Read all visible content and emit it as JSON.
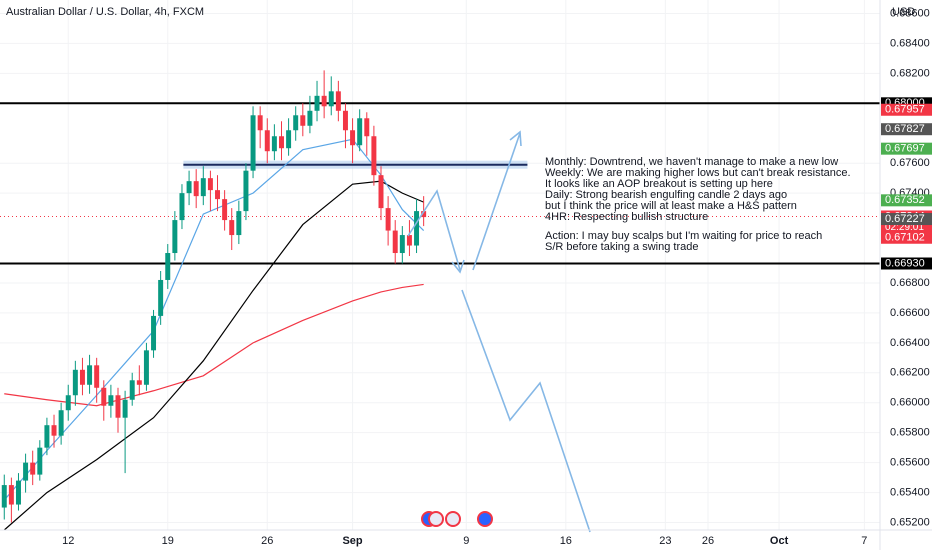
{
  "chart_data": {
    "type": "candlestick",
    "title": "Australian Dollar / U.S. Dollar, 4h, FXCM",
    "currency": "USD",
    "x": [
      7.5,
      8,
      8.5,
      9,
      9.5,
      10,
      10.5,
      11,
      11.5,
      12,
      12.5,
      13,
      13.5,
      14,
      14.5,
      15,
      15.5,
      16,
      16.5,
      17,
      17.5,
      18,
      18.5,
      19,
      19.5,
      20,
      20.5,
      21,
      21.5,
      22,
      22.5,
      23,
      23.5,
      24,
      24.5,
      25,
      25.5,
      26,
      26.5,
      27,
      27.5,
      28,
      28.5,
      29,
      29.5,
      30,
      30.5,
      31,
      31.5,
      32,
      32.5,
      33,
      33.5,
      34,
      34.5,
      35,
      35.5,
      36,
      36.5,
      37
    ],
    "open": [
      0.653,
      0.6545,
      0.6532,
      0.6548,
      0.656,
      0.6552,
      0.657,
      0.6585,
      0.6578,
      0.6595,
      0.6605,
      0.6622,
      0.6612,
      0.6625,
      0.661,
      0.6598,
      0.6605,
      0.659,
      0.6602,
      0.6615,
      0.6612,
      0.6635,
      0.6658,
      0.6682,
      0.67,
      0.6722,
      0.674,
      0.6748,
      0.6738,
      0.675,
      0.6742,
      0.6736,
      0.6722,
      0.6712,
      0.6728,
      0.6755,
      0.6792,
      0.6782,
      0.6768,
      0.6778,
      0.677,
      0.6782,
      0.6792,
      0.6785,
      0.6795,
      0.6805,
      0.6798,
      0.6808,
      0.6795,
      0.6782,
      0.6772,
      0.679,
      0.6778,
      0.6752,
      0.673,
      0.6715,
      0.67,
      0.6712,
      0.6705,
      0.6728
    ],
    "high": [
      0.6552,
      0.655,
      0.6553,
      0.6566,
      0.6568,
      0.6575,
      0.659,
      0.6592,
      0.66,
      0.6612,
      0.6628,
      0.663,
      0.6632,
      0.663,
      0.6615,
      0.6612,
      0.661,
      0.6608,
      0.662,
      0.6625,
      0.664,
      0.6662,
      0.6688,
      0.6706,
      0.6728,
      0.6746,
      0.6755,
      0.6756,
      0.6758,
      0.6755,
      0.6752,
      0.6742,
      0.673,
      0.6735,
      0.676,
      0.6798,
      0.6798,
      0.679,
      0.6786,
      0.6788,
      0.679,
      0.6798,
      0.68,
      0.6805,
      0.6815,
      0.6822,
      0.6818,
      0.6815,
      0.68,
      0.679,
      0.6796,
      0.6794,
      0.6785,
      0.6758,
      0.6738,
      0.6722,
      0.6718,
      0.6722,
      0.6736,
      0.6738
    ],
    "low": [
      0.6522,
      0.652,
      0.6528,
      0.654,
      0.6545,
      0.6548,
      0.6565,
      0.657,
      0.6572,
      0.6588,
      0.6598,
      0.6605,
      0.6606,
      0.66,
      0.6588,
      0.659,
      0.658,
      0.6553,
      0.6598,
      0.6605,
      0.6608,
      0.663,
      0.6652,
      0.6676,
      0.6695,
      0.6716,
      0.6732,
      0.673,
      0.6732,
      0.6728,
      0.6728,
      0.6715,
      0.6702,
      0.6706,
      0.6722,
      0.675,
      0.677,
      0.676,
      0.6762,
      0.6762,
      0.6765,
      0.6775,
      0.6778,
      0.678,
      0.6788,
      0.679,
      0.6792,
      0.6788,
      0.677,
      0.676,
      0.6768,
      0.6765,
      0.6745,
      0.6722,
      0.6705,
      0.6693,
      0.6693,
      0.6698,
      0.67,
      0.6718
    ],
    "close": [
      0.6545,
      0.6532,
      0.6548,
      0.656,
      0.6552,
      0.657,
      0.6585,
      0.6578,
      0.6595,
      0.6605,
      0.6622,
      0.6612,
      0.6625,
      0.661,
      0.6598,
      0.6605,
      0.659,
      0.6602,
      0.6615,
      0.6612,
      0.6635,
      0.6658,
      0.6682,
      0.67,
      0.6722,
      0.674,
      0.6748,
      0.6738,
      0.675,
      0.6742,
      0.6736,
      0.6722,
      0.6712,
      0.6728,
      0.6755,
      0.6792,
      0.6782,
      0.6768,
      0.6778,
      0.677,
      0.6782,
      0.6792,
      0.6785,
      0.6795,
      0.6805,
      0.6798,
      0.6808,
      0.6795,
      0.6782,
      0.6772,
      0.679,
      0.6778,
      0.6752,
      0.673,
      0.6715,
      0.67,
      0.6712,
      0.6705,
      0.6728,
      0.6724
    ],
    "up_color": "#089981",
    "down_color": "#f23645",
    "lines": [
      {
        "color": "#f23645",
        "x": [
          7.5,
          10.5,
          14,
          18,
          21.5,
          25,
          28.5,
          32,
          34,
          35.5,
          37
        ],
        "values": [
          0.6606,
          0.6602,
          0.6598,
          0.6608,
          0.6618,
          0.664,
          0.6655,
          0.6668,
          0.6674,
          0.6677,
          0.6679
        ]
      },
      {
        "color": "#000000",
        "x": [
          7.5,
          10.5,
          14,
          18,
          21.5,
          25,
          28.5,
          32,
          34,
          35.5,
          37
        ],
        "values": [
          0.6515,
          0.654,
          0.6562,
          0.659,
          0.6628,
          0.6675,
          0.6719,
          0.6746,
          0.6748,
          0.674,
          0.6734
        ]
      },
      {
        "color": "#5aa6e6",
        "x": [
          7.5,
          10.5,
          14,
          18,
          21.5,
          25,
          28.5,
          32,
          34,
          35.5,
          37
        ],
        "values": [
          0.6535,
          0.6568,
          0.6605,
          0.6648,
          0.6726,
          0.674,
          0.6769,
          0.6776,
          0.6752,
          0.6729,
          0.6715
        ]
      }
    ],
    "xlim": [
      7.2,
      69.1
    ],
    "ylim": [
      0.6515,
      0.6869
    ],
    "xticks": [
      12,
      19,
      26,
      {
        "value": 32,
        "label": "Sep"
      },
      {
        "value": 40,
        "label": "9"
      },
      {
        "value": 47,
        "label": "16"
      },
      {
        "value": 54,
        "label": "23"
      },
      {
        "value": 57,
        "label": "26"
      },
      {
        "value": 62,
        "label": "Oct"
      },
      {
        "value": 68,
        "label": "7"
      }
    ],
    "yticks": [
      {
        "value": 0.686,
        "label": "0.68600"
      },
      {
        "value": 0.684,
        "label": "0.68400"
      },
      {
        "value": 0.682,
        "label": "0.68200"
      },
      {
        "value": 0.676,
        "label": "0.67600"
      },
      {
        "value": 0.674,
        "label": "0.67400"
      },
      {
        "value": 0.668,
        "label": "0.66800"
      },
      {
        "value": 0.666,
        "label": "0.66600"
      },
      {
        "value": 0.664,
        "label": "0.66400"
      },
      {
        "value": 0.662,
        "label": "0.66200"
      },
      {
        "value": 0.66,
        "label": "0.66000"
      },
      {
        "value": 0.658,
        "label": "0.65800"
      },
      {
        "value": 0.656,
        "label": "0.65600"
      },
      {
        "value": 0.654,
        "label": "0.65400"
      },
      {
        "value": 0.652,
        "label": "0.65200"
      }
    ],
    "grid": true,
    "price_labels": [
      {
        "value": 0.68,
        "label": "0.68000",
        "color": "#000000",
        "line": "solid"
      },
      {
        "value": 0.67957,
        "label": "0.67957",
        "color": "#f23645"
      },
      {
        "value": 0.67827,
        "label": "0.67827",
        "color": "#555555"
      },
      {
        "value": 0.67697,
        "label": "0.67697",
        "color": "#4caf50"
      },
      {
        "value": 0.67352,
        "label": "0.67352",
        "color": "#4caf50"
      },
      {
        "value": 0.67244,
        "label": "0.67244",
        "countdown": "02:29:01",
        "color": "#f23645",
        "line": "dotted"
      },
      {
        "value": 0.67227,
        "label": "0.67227",
        "color": "#555555"
      },
      {
        "value": 0.67102,
        "label": "0.67102",
        "color": "#f23645"
      },
      {
        "value": 0.6693,
        "label": "0.66930",
        "color": "#000000",
        "line": "solid"
      }
    ],
    "zone": {
      "value": 0.6759,
      "x": [
        20.1,
        44.3
      ],
      "color": "#bcd4ef"
    },
    "notes": [
      "Monthly: Downtrend, we haven't manage to make a new low",
      "Weekly: We are making higher lows but can't break resistance.",
      "It looks like an AOP breakout is setting up here",
      "Daily: Strong bearish engulfing candle 2 days ago",
      "but I think the price will at least make a H&S pattern",
      "4HR: Respecting bullish structure"
    ],
    "action": [
      "Action: I may buy scalps but I'm waiting for price to reach",
      "S/R before taking a swing trade"
    ]
  }
}
